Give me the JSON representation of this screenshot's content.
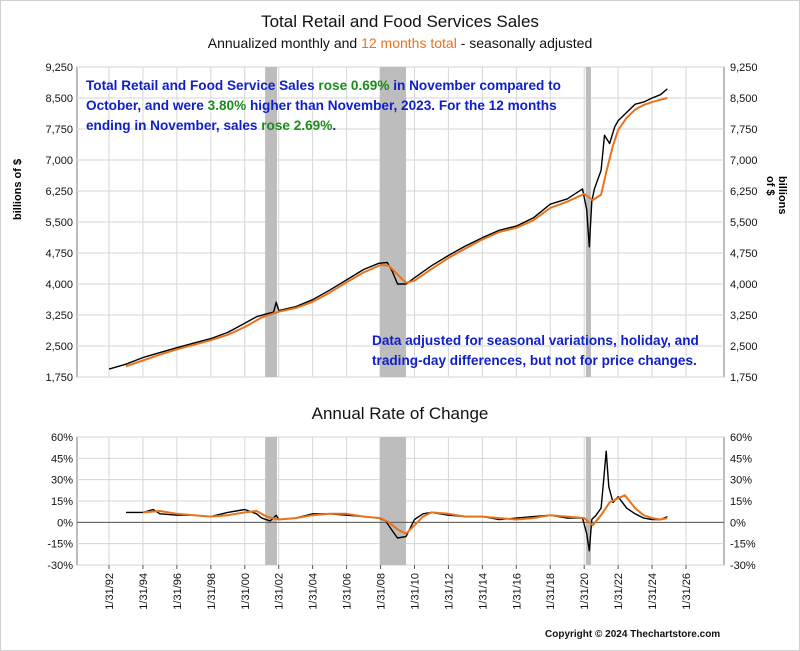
{
  "chart_data": [
    {
      "type": "line",
      "title": "Total Retail and Food Services Sales",
      "subtitle_parts": [
        "Annualized monthly and ",
        "12 months total",
        " - seasonally adjusted"
      ],
      "ylabel": "billions of $",
      "ylim": [
        1750,
        9250
      ],
      "y_ticks": [
        "9,250",
        "8,500",
        "7,750",
        "7,000",
        "6,250",
        "5,500",
        "4,750",
        "4,000",
        "3,250",
        "2,500",
        "1,750"
      ],
      "y_tick_values": [
        9250,
        8500,
        7750,
        7000,
        6250,
        5500,
        4750,
        4000,
        3250,
        2500,
        1750
      ],
      "recessions": [
        [
          2001.2,
          2001.9
        ],
        [
          2007.95,
          2009.5
        ],
        [
          2020.1,
          2020.4
        ]
      ],
      "series": [
        {
          "name": "Annualized monthly",
          "color": "#000000",
          "points": [
            [
              1992.0,
              1940
            ],
            [
              1993.0,
              2060
            ],
            [
              1994.0,
              2220
            ],
            [
              1995.0,
              2340
            ],
            [
              1996.0,
              2460
            ],
            [
              1997.0,
              2570
            ],
            [
              1998.0,
              2680
            ],
            [
              1999.0,
              2830
            ],
            [
              2000.0,
              3050
            ],
            [
              2000.7,
              3210
            ],
            [
              2001.3,
              3280
            ],
            [
              2001.7,
              3320
            ],
            [
              2001.85,
              3560
            ],
            [
              2002.0,
              3360
            ],
            [
              2003.0,
              3450
            ],
            [
              2004.0,
              3620
            ],
            [
              2005.0,
              3850
            ],
            [
              2006.0,
              4100
            ],
            [
              2007.0,
              4350
            ],
            [
              2007.9,
              4500
            ],
            [
              2008.4,
              4520
            ],
            [
              2008.7,
              4300
            ],
            [
              2009.0,
              4000
            ],
            [
              2009.5,
              4000
            ],
            [
              2010.0,
              4150
            ],
            [
              2011.0,
              4440
            ],
            [
              2012.0,
              4690
            ],
            [
              2013.0,
              4920
            ],
            [
              2014.0,
              5120
            ],
            [
              2015.0,
              5300
            ],
            [
              2016.0,
              5400
            ],
            [
              2017.0,
              5600
            ],
            [
              2018.0,
              5930
            ],
            [
              2019.0,
              6060
            ],
            [
              2019.9,
              6300
            ],
            [
              2020.15,
              5800
            ],
            [
              2020.3,
              4900
            ],
            [
              2020.45,
              6000
            ],
            [
              2020.6,
              6300
            ],
            [
              2021.0,
              6750
            ],
            [
              2021.2,
              7600
            ],
            [
              2021.5,
              7400
            ],
            [
              2021.8,
              7800
            ],
            [
              2022.0,
              7950
            ],
            [
              2022.5,
              8150
            ],
            [
              2023.0,
              8350
            ],
            [
              2023.5,
              8400
            ],
            [
              2024.0,
              8500
            ],
            [
              2024.5,
              8580
            ],
            [
              2024.9,
              8720
            ]
          ]
        },
        {
          "name": "12 months total",
          "color": "#e8731e",
          "points": [
            [
              1993.0,
              2010
            ],
            [
              1994.0,
              2150
            ],
            [
              1995.0,
              2290
            ],
            [
              1996.0,
              2420
            ],
            [
              1997.0,
              2530
            ],
            [
              1998.0,
              2640
            ],
            [
              1999.0,
              2770
            ],
            [
              2000.0,
              2960
            ],
            [
              2001.0,
              3190
            ],
            [
              2002.0,
              3330
            ],
            [
              2003.0,
              3420
            ],
            [
              2004.0,
              3570
            ],
            [
              2005.0,
              3790
            ],
            [
              2006.0,
              4040
            ],
            [
              2007.0,
              4280
            ],
            [
              2008.0,
              4460
            ],
            [
              2008.5,
              4440
            ],
            [
              2009.0,
              4230
            ],
            [
              2009.5,
              4030
            ],
            [
              2010.0,
              4080
            ],
            [
              2011.0,
              4360
            ],
            [
              2012.0,
              4630
            ],
            [
              2013.0,
              4860
            ],
            [
              2014.0,
              5080
            ],
            [
              2015.0,
              5260
            ],
            [
              2016.0,
              5360
            ],
            [
              2017.0,
              5540
            ],
            [
              2018.0,
              5840
            ],
            [
              2019.0,
              5990
            ],
            [
              2020.0,
              6180
            ],
            [
              2020.5,
              6030
            ],
            [
              2021.0,
              6160
            ],
            [
              2021.3,
              6700
            ],
            [
              2021.7,
              7350
            ],
            [
              2022.0,
              7720
            ],
            [
              2022.5,
              8020
            ],
            [
              2023.0,
              8220
            ],
            [
              2023.5,
              8330
            ],
            [
              2024.0,
              8400
            ],
            [
              2024.5,
              8460
            ],
            [
              2024.9,
              8500
            ]
          ]
        }
      ],
      "annotations": {
        "text1_parts": [
          "Total Retail and Food Service Sales ",
          "rose 0.69%",
          " in November compared to October, and were ",
          "3.80%",
          " higher than November, 2023.   For the 12 months ending in November, sales ",
          "rose 2.69%",
          "."
        ],
        "text2": "Data adjusted for seasonal variations, holiday, and trading-day differences, but not for price changes."
      }
    },
    {
      "type": "line",
      "title": "Annual Rate of Change",
      "ylim": [
        -30,
        60
      ],
      "y_ticks": [
        "60%",
        "45%",
        "30%",
        "15%",
        "0%",
        "-15%",
        "-30%"
      ],
      "y_tick_values": [
        60,
        45,
        30,
        15,
        0,
        -15,
        -30
      ],
      "x_ticks": [
        "1/31/92",
        "1/31/94",
        "1/31/96",
        "1/31/98",
        "1/31/00",
        "1/31/02",
        "1/31/04",
        "1/31/06",
        "1/31/08",
        "1/31/10",
        "1/31/12",
        "1/31/14",
        "1/31/16",
        "1/31/18",
        "1/31/20",
        "1/31/22",
        "1/31/24",
        "1/31/26"
      ],
      "x_tick_values": [
        1992,
        1994,
        1996,
        1998,
        2000,
        2002,
        2004,
        2006,
        2008,
        2010,
        2012,
        2014,
        2016,
        2018,
        2020,
        2022,
        2024,
        2026
      ],
      "series": [
        {
          "name": "Annualized monthly",
          "color": "#000000",
          "points": [
            [
              1993.0,
              7
            ],
            [
              1994.0,
              7
            ],
            [
              1994.6,
              9
            ],
            [
              1995.0,
              6
            ],
            [
              1996.0,
              5
            ],
            [
              1997.0,
              5
            ],
            [
              1998.0,
              4
            ],
            [
              1999.0,
              7
            ],
            [
              2000.0,
              9
            ],
            [
              2000.7,
              6
            ],
            [
              2001.0,
              3
            ],
            [
              2001.5,
              1
            ],
            [
              2001.85,
              5
            ],
            [
              2002.0,
              2
            ],
            [
              2003.0,
              3
            ],
            [
              2004.0,
              6
            ],
            [
              2005.0,
              6
            ],
            [
              2006.0,
              5
            ],
            [
              2007.0,
              4
            ],
            [
              2007.9,
              3
            ],
            [
              2008.3,
              1
            ],
            [
              2008.7,
              -6
            ],
            [
              2009.0,
              -11
            ],
            [
              2009.5,
              -10
            ],
            [
              2010.0,
              2
            ],
            [
              2010.5,
              6
            ],
            [
              2011.0,
              7
            ],
            [
              2012.0,
              5
            ],
            [
              2013.0,
              4
            ],
            [
              2014.0,
              4
            ],
            [
              2015.0,
              2
            ],
            [
              2016.0,
              3
            ],
            [
              2017.0,
              4
            ],
            [
              2018.0,
              5
            ],
            [
              2019.0,
              3
            ],
            [
              2019.9,
              3
            ],
            [
              2020.15,
              -8
            ],
            [
              2020.3,
              -20
            ],
            [
              2020.45,
              2
            ],
            [
              2020.7,
              5
            ],
            [
              2021.0,
              10
            ],
            [
              2021.15,
              30
            ],
            [
              2021.3,
              50
            ],
            [
              2021.45,
              25
            ],
            [
              2021.7,
              14
            ],
            [
              2022.0,
              18
            ],
            [
              2022.5,
              10
            ],
            [
              2023.0,
              6
            ],
            [
              2023.5,
              3
            ],
            [
              2024.0,
              2
            ],
            [
              2024.5,
              2
            ],
            [
              2024.9,
              4
            ]
          ]
        },
        {
          "name": "12 months total",
          "color": "#e8731e",
          "points": [
            [
              1994.0,
              7
            ],
            [
              1995.0,
              8
            ],
            [
              1996.0,
              6
            ],
            [
              1997.0,
              5
            ],
            [
              1998.0,
              4
            ],
            [
              1999.0,
              5
            ],
            [
              2000.0,
              7
            ],
            [
              2000.7,
              8
            ],
            [
              2001.3,
              4
            ],
            [
              2002.0,
              2
            ],
            [
              2003.0,
              3
            ],
            [
              2004.0,
              5
            ],
            [
              2005.0,
              6
            ],
            [
              2006.0,
              6
            ],
            [
              2007.0,
              4
            ],
            [
              2008.0,
              3
            ],
            [
              2008.5,
              0
            ],
            [
              2009.0,
              -5
            ],
            [
              2009.5,
              -8
            ],
            [
              2010.0,
              -2
            ],
            [
              2010.5,
              4
            ],
            [
              2011.0,
              7
            ],
            [
              2012.0,
              6
            ],
            [
              2013.0,
              4
            ],
            [
              2014.0,
              4
            ],
            [
              2015.0,
              3
            ],
            [
              2016.0,
              2
            ],
            [
              2017.0,
              3
            ],
            [
              2018.0,
              5
            ],
            [
              2019.0,
              4
            ],
            [
              2020.0,
              3
            ],
            [
              2020.5,
              -2
            ],
            [
              2021.0,
              5
            ],
            [
              2021.5,
              14
            ],
            [
              2022.0,
              17
            ],
            [
              2022.4,
              19
            ],
            [
              2023.0,
              10
            ],
            [
              2023.5,
              5
            ],
            [
              2024.0,
              3
            ],
            [
              2024.5,
              2
            ],
            [
              2024.9,
              3
            ]
          ]
        }
      ]
    }
  ],
  "copyright": "Copyright © 2024 Thechartstore.com"
}
